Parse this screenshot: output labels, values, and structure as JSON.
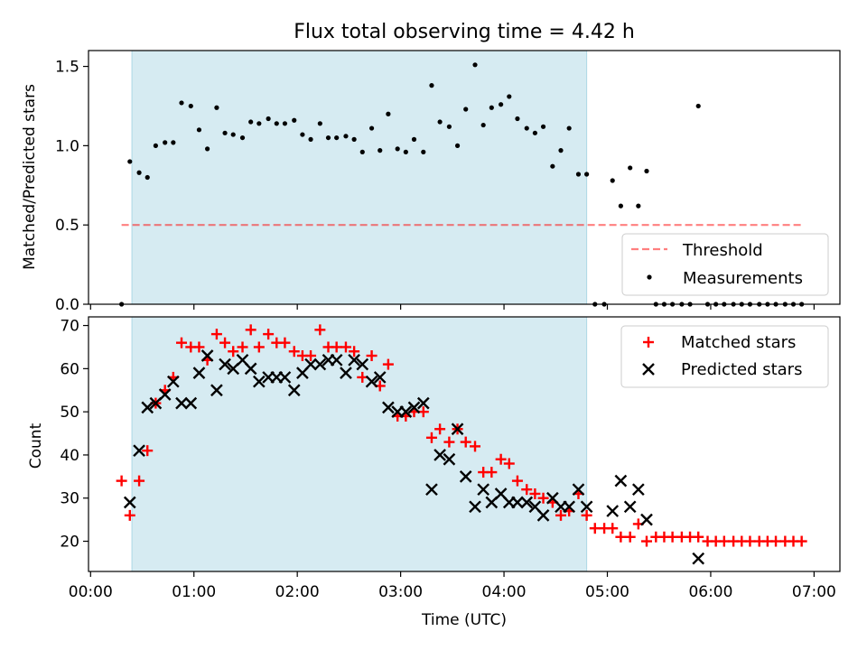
{
  "figure": {
    "title": "Flux total observing time = 4.42 h",
    "xlabel": "Time (UTC)",
    "x_tick_labels": [
      "00:00",
      "01:00",
      "02:00",
      "03:00",
      "04:00",
      "05:00",
      "06:00",
      "07:00"
    ],
    "x_tick_hours": [
      0,
      1,
      2,
      3,
      4,
      5,
      6,
      7
    ],
    "xlim_hours": [
      -0.02,
      7.25
    ],
    "observing_window_hours": [
      0.4,
      4.8
    ],
    "span_color": "#add8e6"
  },
  "chart_data": [
    {
      "type": "scatter",
      "ylabel": "Matched/Predicted stars",
      "ylim": [
        0,
        1.6
      ],
      "y_ticks": [
        0.0,
        0.5,
        1.0,
        1.5
      ],
      "y_tick_labels": [
        "0.0",
        "0.5",
        "1.0",
        "1.5"
      ],
      "legend_position": "bottom-right",
      "threshold": {
        "name": "Threshold",
        "value": 0.5,
        "x_range": [
          0.3,
          6.9
        ],
        "color": "#ff0000",
        "alpha": 0.5,
        "style": "dashed"
      },
      "series": [
        {
          "name": "Measurements",
          "color": "#000000",
          "marker": "dot",
          "x": [
            0.3,
            0.38,
            0.47,
            0.55,
            0.63,
            0.72,
            0.8,
            0.88,
            0.97,
            1.05,
            1.13,
            1.22,
            1.3,
            1.38,
            1.47,
            1.55,
            1.63,
            1.72,
            1.8,
            1.88,
            1.97,
            2.05,
            2.13,
            2.22,
            2.3,
            2.38,
            2.47,
            2.55,
            2.63,
            2.72,
            2.8,
            2.88,
            2.97,
            3.05,
            3.13,
            3.22,
            3.3,
            3.38,
            3.47,
            3.55,
            3.63,
            3.72,
            3.8,
            3.88,
            3.97,
            4.05,
            4.13,
            4.22,
            4.3,
            4.38,
            4.47,
            4.55,
            4.63,
            4.72,
            4.8,
            4.88,
            4.97,
            5.05,
            5.13,
            5.22,
            5.3,
            5.38,
            5.47,
            5.55,
            5.63,
            5.72,
            5.8,
            5.88,
            5.97,
            6.05,
            6.13,
            6.22,
            6.3,
            6.38,
            6.47,
            6.55,
            6.63,
            6.72,
            6.8,
            6.88
          ],
          "y": [
            0.0,
            0.9,
            0.83,
            0.8,
            1.0,
            1.02,
            1.02,
            1.27,
            1.25,
            1.1,
            0.98,
            1.24,
            1.08,
            1.07,
            1.05,
            1.15,
            1.14,
            1.17,
            1.14,
            1.14,
            1.16,
            1.07,
            1.04,
            1.14,
            1.05,
            1.05,
            1.06,
            1.04,
            0.96,
            1.11,
            0.97,
            1.2,
            0.98,
            0.96,
            1.04,
            0.96,
            1.38,
            1.15,
            1.12,
            1.0,
            1.23,
            1.51,
            1.13,
            1.24,
            1.26,
            1.31,
            1.17,
            1.11,
            1.08,
            1.12,
            0.87,
            0.97,
            1.11,
            0.82,
            0.82,
            0.0,
            0.0,
            0.78,
            0.62,
            0.86,
            0.62,
            0.84,
            0.0,
            0.0,
            0.0,
            0.0,
            0.0,
            1.25,
            0.0,
            0.0,
            0.0,
            0.0,
            0.0,
            0.0,
            0.0,
            0.0,
            0.0,
            0.0,
            0.0,
            0.0
          ]
        }
      ]
    },
    {
      "type": "scatter",
      "ylabel": "Count",
      "ylim": [
        13,
        72
      ],
      "y_ticks": [
        20,
        30,
        40,
        50,
        60,
        70
      ],
      "y_tick_labels": [
        "20",
        "30",
        "40",
        "50",
        "60",
        "70"
      ],
      "legend_position": "top-right",
      "series": [
        {
          "name": "Matched stars",
          "color": "#ff0000",
          "marker": "plus",
          "x": [
            0.3,
            0.38,
            0.47,
            0.55,
            0.63,
            0.72,
            0.8,
            0.88,
            0.97,
            1.05,
            1.13,
            1.22,
            1.3,
            1.38,
            1.47,
            1.55,
            1.63,
            1.72,
            1.8,
            1.88,
            1.97,
            2.05,
            2.13,
            2.22,
            2.3,
            2.38,
            2.47,
            2.55,
            2.63,
            2.72,
            2.8,
            2.88,
            2.97,
            3.05,
            3.13,
            3.22,
            3.3,
            3.38,
            3.47,
            3.55,
            3.63,
            3.72,
            3.8,
            3.88,
            3.97,
            4.05,
            4.13,
            4.22,
            4.3,
            4.38,
            4.47,
            4.55,
            4.63,
            4.72,
            4.8,
            4.88,
            4.97,
            5.05,
            5.13,
            5.22,
            5.3,
            5.38,
            5.47,
            5.55,
            5.63,
            5.72,
            5.8,
            5.88,
            5.97,
            6.05,
            6.13,
            6.22,
            6.3,
            6.38,
            6.47,
            6.55,
            6.63,
            6.72,
            6.8,
            6.88
          ],
          "y": [
            34,
            26,
            34,
            41,
            52,
            55,
            58,
            66,
            65,
            65,
            62,
            68,
            66,
            64,
            65,
            69,
            65,
            68,
            66,
            66,
            64,
            63,
            63,
            69,
            65,
            65,
            65,
            64,
            58,
            63,
            56,
            61,
            49,
            49,
            50,
            50,
            44,
            46,
            43,
            46,
            43,
            42,
            36,
            36,
            39,
            38,
            34,
            32,
            31,
            30,
            29,
            26,
            27,
            31,
            26,
            23,
            23,
            23,
            21,
            21,
            24,
            20,
            21,
            21,
            21,
            21,
            21,
            21,
            20,
            20,
            20,
            20,
            20,
            20,
            20,
            20,
            20,
            20,
            20,
            20
          ]
        },
        {
          "name": "Predicted stars",
          "color": "#000000",
          "marker": "x",
          "x": [
            0.38,
            0.47,
            0.55,
            0.63,
            0.72,
            0.8,
            0.88,
            0.97,
            1.05,
            1.13,
            1.22,
            1.3,
            1.38,
            1.47,
            1.55,
            1.63,
            1.72,
            1.8,
            1.88,
            1.97,
            2.05,
            2.13,
            2.22,
            2.3,
            2.38,
            2.47,
            2.55,
            2.63,
            2.72,
            2.8,
            2.88,
            2.97,
            3.05,
            3.13,
            3.22,
            3.3,
            3.38,
            3.47,
            3.55,
            3.63,
            3.72,
            3.8,
            3.88,
            3.97,
            4.05,
            4.13,
            4.22,
            4.3,
            4.38,
            4.47,
            4.55,
            4.63,
            4.72,
            4.8,
            5.05,
            5.13,
            5.22,
            5.3,
            5.38,
            5.88
          ],
          "y": [
            29,
            41,
            51,
            52,
            54,
            57,
            52,
            52,
            59,
            63,
            55,
            61,
            60,
            62,
            60,
            57,
            58,
            58,
            58,
            55,
            59,
            61,
            61,
            62,
            62,
            59,
            62,
            61,
            57,
            58,
            51,
            50,
            50,
            51,
            52,
            32,
            40,
            39,
            46,
            35,
            28,
            32,
            29,
            31,
            29,
            29,
            29,
            28,
            26,
            30,
            28,
            28,
            32,
            28,
            27,
            34,
            28,
            32,
            25,
            16
          ]
        }
      ]
    }
  ]
}
